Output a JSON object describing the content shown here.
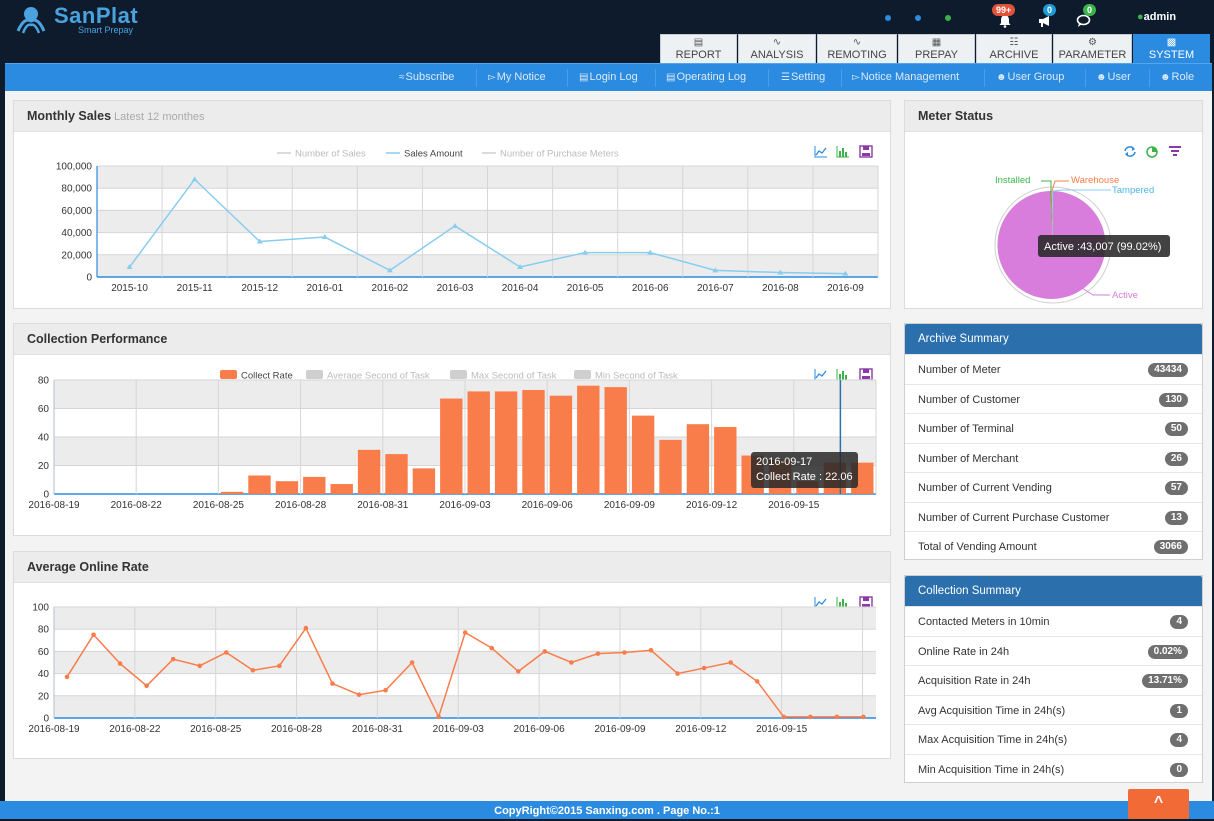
{
  "brand": {
    "name": "SanPlat",
    "tagline": "Smart Prepay"
  },
  "notifications": {
    "alerts": "99+",
    "broadcast": "0",
    "messages": "0"
  },
  "user": {
    "name": "admin"
  },
  "tabs": [
    {
      "label": "REPORT",
      "icon": "report-icon"
    },
    {
      "label": "ANALYSIS",
      "icon": "analysis-icon"
    },
    {
      "label": "REMOTING",
      "icon": "remoting-icon"
    },
    {
      "label": "PREPAY",
      "icon": "prepay-icon"
    },
    {
      "label": "ARCHIVE",
      "icon": "archive-icon"
    },
    {
      "label": "PARAMETER",
      "icon": "parameter-icon"
    },
    {
      "label": "SYSTEM",
      "icon": "system-icon",
      "active": true
    }
  ],
  "subnav": [
    "Subscribe",
    "My Notice",
    "Login Log",
    "Operating Log",
    "Setting",
    "Notice Management",
    "User Group",
    "User",
    "Role"
  ],
  "colors": {
    "accent": "#2b8be0",
    "topbar": "#0e1b2c",
    "orange": "#f97d4b",
    "sales_line": "#87cdf0",
    "pie_active": "#d97ddc"
  },
  "monthly_sales": {
    "title": "Monthly Sales",
    "subtitle": "Latest 12 monthes",
    "legend": [
      "Number of Sales",
      "Sales Amount",
      "Number of Purchase Meters"
    ],
    "chart_data": {
      "type": "line",
      "x": [
        "2015-10",
        "2015-11",
        "2015-12",
        "2016-01",
        "2016-02",
        "2016-03",
        "2016-04",
        "2016-05",
        "2016-06",
        "2016-07",
        "2016-08",
        "2016-09"
      ],
      "series": [
        {
          "name": "Sales Amount",
          "values": [
            9000,
            88000,
            32000,
            36000,
            6000,
            46000,
            9000,
            22000,
            22000,
            6000,
            4000,
            3000
          ]
        }
      ],
      "ylim": [
        0,
        100000
      ],
      "yticks": [
        "0",
        "20,000",
        "40,000",
        "60,000",
        "80,000",
        "100,000"
      ]
    }
  },
  "collection_performance": {
    "title": "Collection Performance",
    "legend": [
      "Collect Rate",
      "Average Second of Task",
      "Max Second of Task",
      "Min Second of Task"
    ],
    "tooltip": {
      "date": "2016-09-17",
      "text": "Collect Rate : 22.06"
    },
    "chart_data": {
      "type": "bar",
      "x_ticks": [
        "2016-08-19",
        "2016-08-22",
        "2016-08-25",
        "2016-08-28",
        "2016-08-31",
        "2016-09-03",
        "2016-09-06",
        "2016-09-09",
        "2016-09-12",
        "2016-09-15"
      ],
      "start_date": "2016-08-19",
      "series": [
        {
          "name": "Collect Rate",
          "values": [
            0,
            0,
            0,
            0,
            0,
            0,
            1.5,
            13,
            9,
            12,
            7,
            31,
            28,
            18,
            67,
            72,
            72,
            73,
            69,
            76,
            75,
            55,
            38,
            49,
            47,
            27,
            24,
            9,
            22.06,
            22
          ]
        }
      ],
      "ylim": [
        0,
        80
      ],
      "yticks": [
        "0",
        "20",
        "40",
        "60",
        "80"
      ]
    }
  },
  "average_online_rate": {
    "title": "Average Online Rate",
    "chart_data": {
      "type": "line",
      "x_ticks": [
        "2016-08-19",
        "2016-08-22",
        "2016-08-25",
        "2016-08-28",
        "2016-08-31",
        "2016-09-03",
        "2016-09-06",
        "2016-09-09",
        "2016-09-12",
        "2016-09-15"
      ],
      "values": [
        37,
        75,
        49,
        29,
        53,
        47,
        59,
        43,
        47,
        81,
        31,
        21,
        25,
        50,
        1,
        77,
        63,
        42,
        60,
        50,
        58,
        59,
        61,
        40,
        45,
        50,
        33,
        1,
        1,
        1,
        1
      ],
      "ylim": [
        0,
        100
      ],
      "yticks": [
        "0",
        "20",
        "40",
        "60",
        "80",
        "100"
      ]
    }
  },
  "meter_status": {
    "title": "Meter Status",
    "labels": [
      "Installed",
      "Warehouse",
      "Tampered",
      "Active"
    ],
    "tooltip": "Active :43,007 (99.02%)",
    "chart_data": {
      "type": "pie",
      "slices": [
        {
          "name": "Active",
          "value": 43007,
          "pct": 99.02,
          "color": "#d97ddc"
        },
        {
          "name": "Installed",
          "value": 200,
          "color": "#3cb34a"
        },
        {
          "name": "Warehouse",
          "value": 120,
          "color": "#f97d4b"
        },
        {
          "name": "Tampered",
          "value": 107,
          "color": "#87cdf0"
        }
      ]
    }
  },
  "archive_summary": {
    "title": "Archive Summary",
    "rows": [
      {
        "label": "Number of Meter",
        "value": "43434"
      },
      {
        "label": "Number of Customer",
        "value": "130"
      },
      {
        "label": "Number of Terminal",
        "value": "50"
      },
      {
        "label": "Number of Merchant",
        "value": "26"
      },
      {
        "label": "Number of Current Vending",
        "value": "57"
      },
      {
        "label": "Number of Current Purchase Customer",
        "value": "13"
      },
      {
        "label": "Total of Vending Amount",
        "value": "3066"
      }
    ]
  },
  "collection_summary": {
    "title": "Collection Summary",
    "rows": [
      {
        "label": "Contacted Meters in 10min",
        "value": "4"
      },
      {
        "label": "Online Rate in 24h",
        "value": "0.02%"
      },
      {
        "label": "Acquisition Rate in 24h",
        "value": "13.71%"
      },
      {
        "label": "Avg Acquisition Time in 24h(s)",
        "value": "1"
      },
      {
        "label": "Max Acquisition Time in 24h(s)",
        "value": "4"
      },
      {
        "label": "Min Acquisition Time in 24h(s)",
        "value": "0"
      }
    ]
  },
  "footer": {
    "text": "CopyRight©2015 Sanxing.com . Page No.:1",
    "to_top": "^"
  }
}
